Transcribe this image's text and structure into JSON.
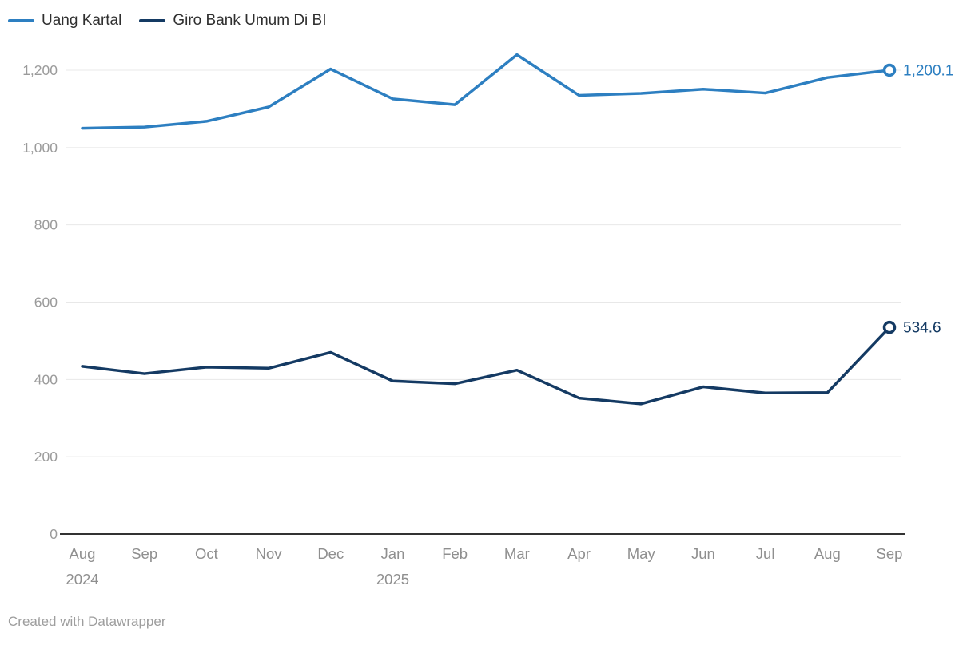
{
  "legend": {
    "items": [
      {
        "label": "Uang Kartal",
        "color": "#2d7fc1"
      },
      {
        "label": "Giro Bank Umum Di BI",
        "color": "#143a63"
      }
    ]
  },
  "footer": {
    "text": "Created with Datawrapper"
  },
  "colors": {
    "series_light_blue": "#2d7fc1",
    "series_dark_navy": "#143a63",
    "gridline": "#e8e8e8",
    "baseline": "#333333",
    "axis_label": "#9b9b9b",
    "x_label": "#8f8f8f",
    "legend_text": "#2f2f2f",
    "footer_text": "#9e9e9e",
    "background": "#ffffff"
  },
  "chart_data": {
    "type": "line",
    "title": "",
    "xlabel": "",
    "ylabel": "",
    "x": [
      {
        "label": "Aug",
        "year": "2024"
      },
      {
        "label": "Sep"
      },
      {
        "label": "Oct"
      },
      {
        "label": "Nov"
      },
      {
        "label": "Dec"
      },
      {
        "label": "Jan",
        "year": "2025"
      },
      {
        "label": "Feb"
      },
      {
        "label": "Mar"
      },
      {
        "label": "Apr"
      },
      {
        "label": "May"
      },
      {
        "label": "Jun"
      },
      {
        "label": "Jul"
      },
      {
        "label": "Aug"
      },
      {
        "label": "Sep"
      }
    ],
    "series": [
      {
        "name": "Uang Kartal",
        "color": "#2d7fc1",
        "values": [
          1050,
          1053,
          1068,
          1105,
          1203,
          1126,
          1111,
          1240,
          1135,
          1140,
          1151,
          1141,
          1181,
          1200.1
        ],
        "end_label": "1,200.1",
        "end_marker": "open-circle"
      },
      {
        "name": "Giro Bank Umum Di BI",
        "color": "#143a63",
        "values": [
          434,
          415,
          432,
          429,
          470,
          396,
          389,
          424,
          352,
          337,
          381,
          365,
          366,
          534.6
        ],
        "end_label": "534.6",
        "end_marker": "open-circle"
      }
    ],
    "ylim": [
      0,
      1200
    ],
    "yticks": [
      {
        "value": 0,
        "label": "0"
      },
      {
        "value": 200,
        "label": "200"
      },
      {
        "value": 400,
        "label": "400"
      },
      {
        "value": 600,
        "label": "600"
      },
      {
        "value": 800,
        "label": "800"
      },
      {
        "value": 1000,
        "label": "1,000"
      },
      {
        "value": 1200,
        "label": "1,200"
      }
    ],
    "grid": "horizontal",
    "legend_position": "top-left"
  }
}
